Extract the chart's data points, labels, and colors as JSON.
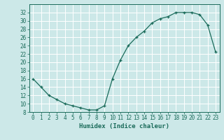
{
  "x": [
    0,
    1,
    2,
    3,
    4,
    5,
    6,
    7,
    8,
    9,
    10,
    11,
    12,
    13,
    14,
    15,
    16,
    17,
    18,
    19,
    20,
    21,
    22,
    23
  ],
  "y": [
    16,
    14,
    12,
    11,
    10,
    9.5,
    9,
    8.5,
    8.5,
    9.5,
    16,
    20.5,
    24,
    26,
    27.5,
    29.5,
    30.5,
    31,
    32,
    32,
    32,
    31.5,
    29,
    22.5
  ],
  "line_color": "#1a6b5a",
  "marker": "+",
  "marker_color": "#1a6b5a",
  "bg_color": "#cce8e8",
  "grid_color": "#ffffff",
  "xlabel": "Humidex (Indice chaleur)",
  "ylim": [
    8,
    34
  ],
  "xlim": [
    -0.5,
    23.5
  ],
  "yticks": [
    8,
    10,
    12,
    14,
    16,
    18,
    20,
    22,
    24,
    26,
    28,
    30,
    32
  ],
  "xticks": [
    0,
    1,
    2,
    3,
    4,
    5,
    6,
    7,
    8,
    9,
    10,
    11,
    12,
    13,
    14,
    15,
    16,
    17,
    18,
    19,
    20,
    21,
    22,
    23
  ],
  "axis_color": "#1a6b5a",
  "label_fontsize": 6.5,
  "tick_fontsize": 5.5
}
